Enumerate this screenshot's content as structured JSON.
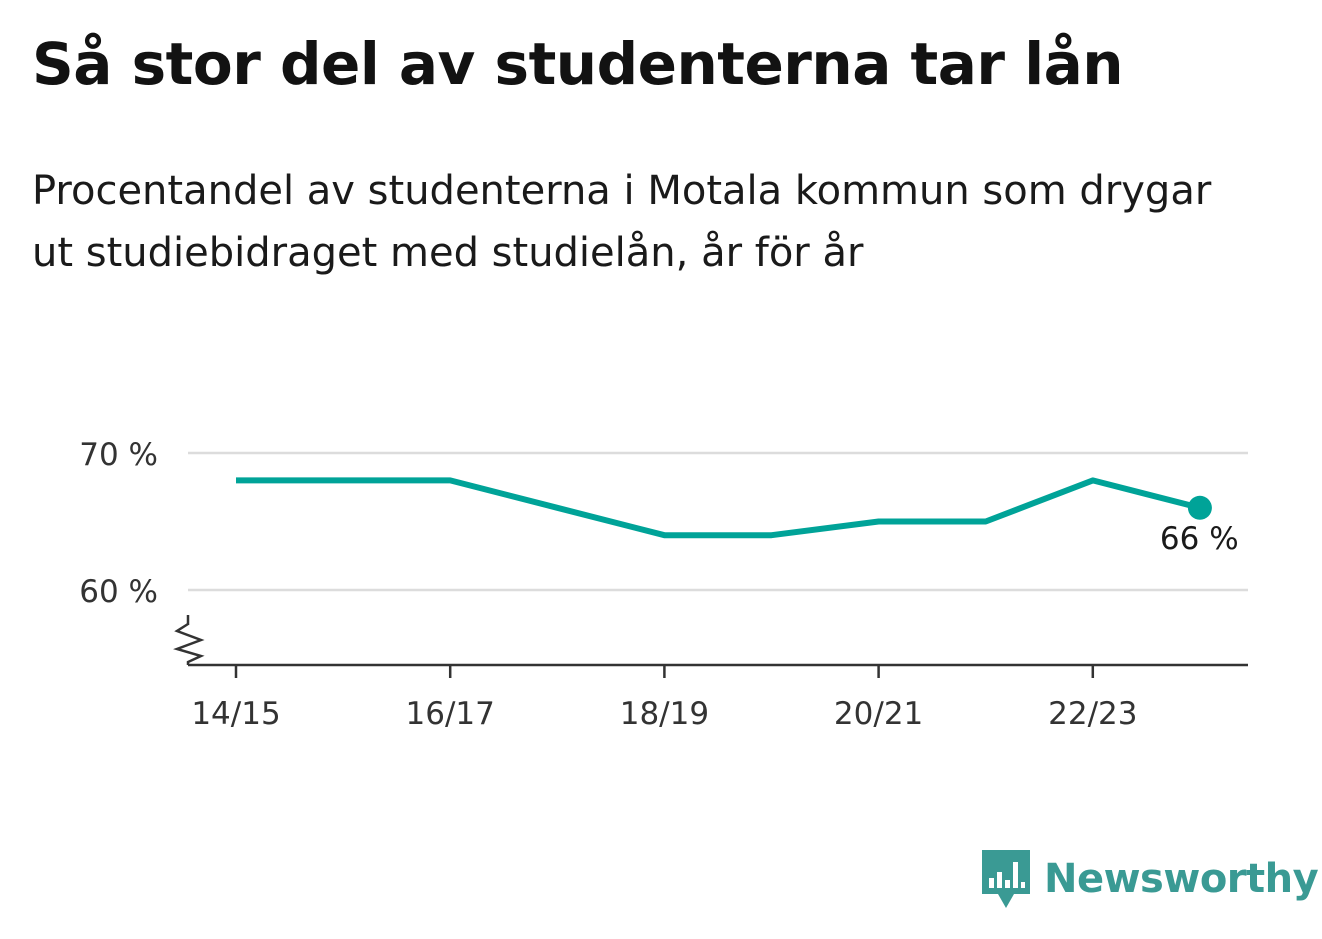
{
  "title": "Så stor del av studenterna tar lån",
  "subtitle": "Procentandel av studenterna i Motala kommun som drygar ut studiebidraget med studielån, år för år",
  "brand": {
    "name": "Newsworthy",
    "icon": "newsworthy-logo-icon",
    "color": "#3a9a94"
  },
  "chart_data": {
    "type": "line",
    "x": [
      "14/15",
      "15/16",
      "16/17",
      "17/18",
      "18/19",
      "19/20",
      "20/21",
      "21/22",
      "22/23",
      "23/24"
    ],
    "series": [
      {
        "values": [
          68,
          68,
          68,
          66,
          64,
          64,
          65,
          65,
          68,
          66
        ],
        "color": "#00a398"
      }
    ],
    "x_tick_labels": [
      "14/15",
      "16/17",
      "18/19",
      "20/21",
      "22/23"
    ],
    "y_ticks": [
      60,
      70
    ],
    "y_tick_labels": [
      "60 %",
      "70 %"
    ],
    "ylim": [
      54.5,
      71.5
    ],
    "y_axis_break": true,
    "grid": true,
    "end_label": "66 %",
    "xlabel": "",
    "ylabel": ""
  }
}
